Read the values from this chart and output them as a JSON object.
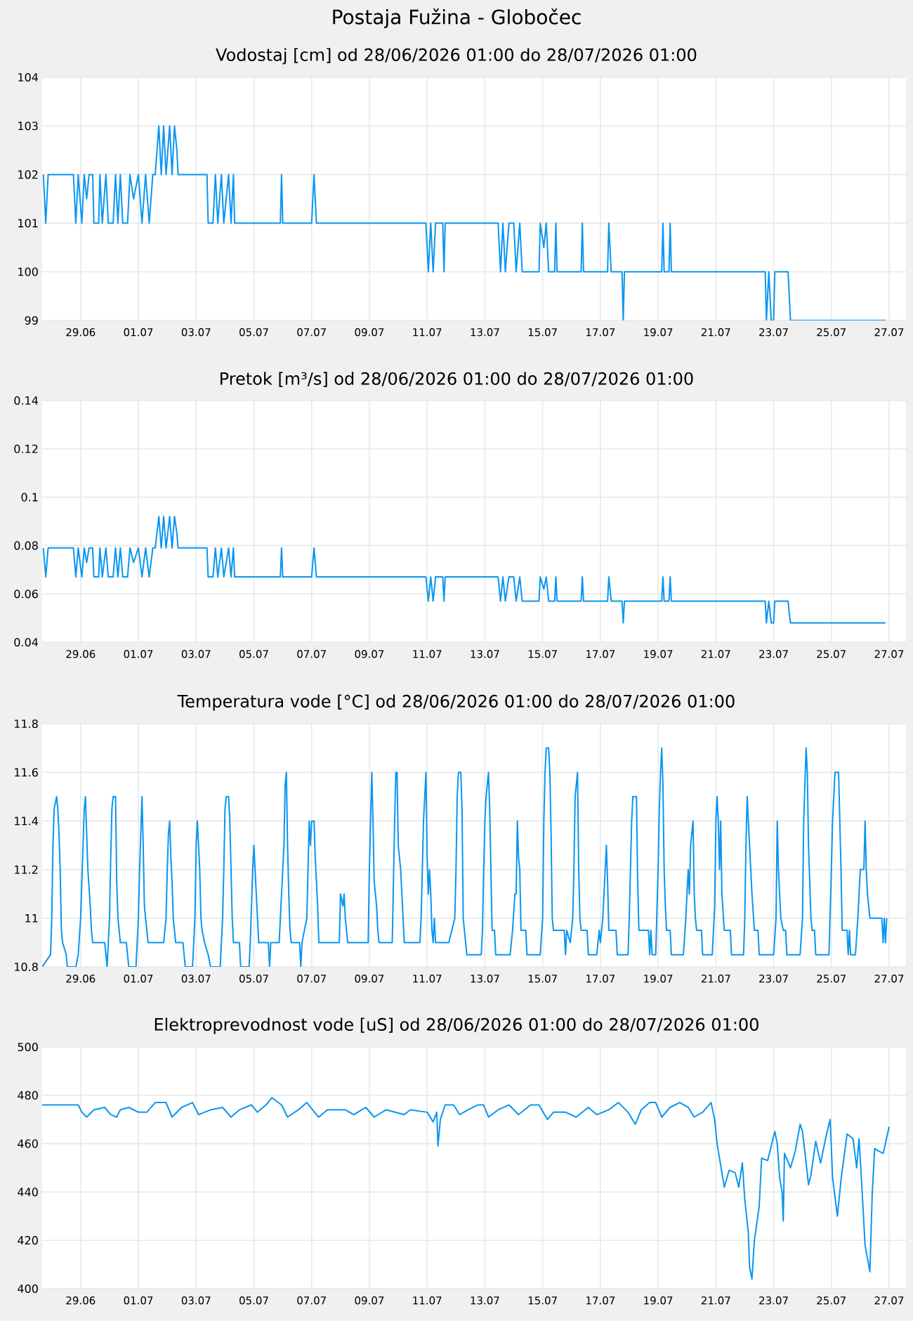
{
  "chart_data": [
    {
      "type": "line",
      "title": "Postaja Fužina - Globočec",
      "subtitle": "Vodostaj [cm] od 28/06/2026 01:00 do 28/07/2026 01:00",
      "color": "#0a96f0",
      "grid": true,
      "xlim": [
        "2026-06-27T16:00",
        "2026-07-27T14:00"
      ],
      "xticks": [
        {
          "value": "2026-06-29",
          "label": "29.06"
        },
        {
          "value": "2026-07-01",
          "label": "01.07"
        },
        {
          "value": "2026-07-03",
          "label": "03.07"
        },
        {
          "value": "2026-07-05",
          "label": "05.07"
        },
        {
          "value": "2026-07-07",
          "label": "07.07"
        },
        {
          "value": "2026-07-09",
          "label": "09.07"
        },
        {
          "value": "2026-07-11",
          "label": "11.07"
        },
        {
          "value": "2026-07-13",
          "label": "13.07"
        },
        {
          "value": "2026-07-15",
          "label": "15.07"
        },
        {
          "value": "2026-07-17",
          "label": "17.07"
        },
        {
          "value": "2026-07-19",
          "label": "19.07"
        },
        {
          "value": "2026-07-21",
          "label": "21.07"
        },
        {
          "value": "2026-07-23",
          "label": "23.07"
        },
        {
          "value": "2026-07-25",
          "label": "25.07"
        },
        {
          "value": "2026-07-27",
          "label": "27.07"
        }
      ],
      "ylim": [
        99,
        104
      ],
      "yticks": [
        99,
        100,
        101,
        102,
        103,
        104
      ],
      "x": [
        "2026-06-27T17:00",
        "2026-06-27T19:00",
        "2026-06-27T21:00",
        "2026-06-28T18:00",
        "2026-06-28T20:00",
        "2026-06-28T22:00",
        "2026-06-29T01:00",
        "2026-06-29T03:00",
        "2026-06-29T05:00",
        "2026-06-29T07:00",
        "2026-06-29T10:00",
        "2026-06-29T11:00",
        "2026-06-29T15:00",
        "2026-06-29T16:00",
        "2026-06-29T18:00",
        "2026-06-29T21:00",
        "2026-06-29T23:00",
        "2026-06-30T03:00",
        "2026-06-30T05:00",
        "2026-06-30T07:00",
        "2026-06-30T09:00",
        "2026-06-30T11:00",
        "2026-06-30T15:00",
        "2026-06-30T17:00",
        "2026-06-30T20:00",
        "2026-07-01T00:00",
        "2026-07-01T03:00",
        "2026-07-01T06:00",
        "2026-07-01T09:00",
        "2026-07-01T12:00",
        "2026-07-01T14:00",
        "2026-07-01T17:00",
        "2026-07-01T19:00",
        "2026-07-01T21:00",
        "2026-07-01T23:00",
        "2026-07-02T02:00",
        "2026-07-02T04:00",
        "2026-07-02T06:00",
        "2026-07-02T08:00",
        "2026-07-02T09:00",
        "2026-07-03T09:00",
        "2026-07-03T10:00",
        "2026-07-03T14:00",
        "2026-07-03T16:00",
        "2026-07-03T18:00",
        "2026-07-03T21:00",
        "2026-07-03T23:00",
        "2026-07-04T03:00",
        "2026-07-04T05:00",
        "2026-07-04T07:00",
        "2026-07-04T08:00",
        "2026-07-05T22:00",
        "2026-07-05T23:00",
        "2026-07-06T00:00",
        "2026-07-07T00:00",
        "2026-07-07T02:00",
        "2026-07-07T04:00",
        "2026-07-10T23:00",
        "2026-07-11T01:00",
        "2026-07-11T03:00",
        "2026-07-11T05:00",
        "2026-07-11T07:00",
        "2026-07-11T13:00",
        "2026-07-11T14:00",
        "2026-07-11T15:00",
        "2026-07-13T11:00",
        "2026-07-13T13:00",
        "2026-07-13T15:00",
        "2026-07-13T17:00",
        "2026-07-13T20:00",
        "2026-07-14T00:00",
        "2026-07-14T02:00",
        "2026-07-14T05:00",
        "2026-07-14T07:00",
        "2026-07-14T21:00",
        "2026-07-14T22:00",
        "2026-07-15T01:00",
        "2026-07-15T03:00",
        "2026-07-15T05:00",
        "2026-07-15T10:00",
        "2026-07-15T11:00",
        "2026-07-15T12:00",
        "2026-07-16T08:00",
        "2026-07-16T09:00",
        "2026-07-16T10:00",
        "2026-07-17T06:00",
        "2026-07-17T07:00",
        "2026-07-17T09:00",
        "2026-07-17T18:00",
        "2026-07-17T19:00",
        "2026-07-17T20:00",
        "2026-07-19T03:00",
        "2026-07-19T04:00",
        "2026-07-19T05:00",
        "2026-07-19T09:00",
        "2026-07-19T10:00",
        "2026-07-19T11:00",
        "2026-07-22T17:00",
        "2026-07-22T18:00",
        "2026-07-22T20:00",
        "2026-07-22T22:00",
        "2026-07-23T00:00",
        "2026-07-23T01:00",
        "2026-07-23T12:00",
        "2026-07-23T13:00",
        "2026-07-23T14:00",
        "2026-07-26T21:00"
      ],
      "values": [
        102,
        101,
        102,
        102,
        101,
        102,
        101,
        102,
        101.5,
        102,
        102,
        101,
        101,
        102,
        101,
        102,
        101,
        101,
        102,
        101,
        102,
        101,
        101,
        102,
        101.5,
        102,
        101,
        102,
        101,
        102,
        102,
        103,
        102,
        103,
        102,
        103,
        102,
        103,
        102.5,
        102,
        102,
        101,
        101,
        102,
        101,
        102,
        101,
        102,
        101,
        102,
        101,
        101,
        102,
        101,
        101,
        102,
        101,
        101,
        100,
        101,
        100,
        101,
        101,
        100,
        101,
        101,
        100,
        101,
        100,
        101,
        101,
        100,
        101,
        100,
        100,
        101,
        100.5,
        101,
        100,
        100,
        101,
        100,
        100,
        101,
        100,
        100,
        101,
        100,
        100,
        99,
        100,
        100,
        101,
        100,
        100,
        101,
        100,
        100,
        99,
        100,
        99,
        99,
        100,
        100,
        99.5,
        99,
        99
      ]
    },
    {
      "type": "line",
      "title": "Pretok [m³/s] od 28/06/2026 01:00 do 28/07/2026 01:00",
      "color": "#0a96f0",
      "grid": true,
      "xlim": [
        "2026-06-27T16:00",
        "2026-07-27T14:00"
      ],
      "xticks": [
        {
          "value": "2026-06-29",
          "label": "29.06"
        },
        {
          "value": "2026-07-01",
          "label": "01.07"
        },
        {
          "value": "2026-07-03",
          "label": "03.07"
        },
        {
          "value": "2026-07-05",
          "label": "05.07"
        },
        {
          "value": "2026-07-07",
          "label": "07.07"
        },
        {
          "value": "2026-07-09",
          "label": "09.07"
        },
        {
          "value": "2026-07-11",
          "label": "11.07"
        },
        {
          "value": "2026-07-13",
          "label": "13.07"
        },
        {
          "value": "2026-07-15",
          "label": "15.07"
        },
        {
          "value": "2026-07-17",
          "label": "17.07"
        },
        {
          "value": "2026-07-19",
          "label": "19.07"
        },
        {
          "value": "2026-07-21",
          "label": "21.07"
        },
        {
          "value": "2026-07-23",
          "label": "23.07"
        },
        {
          "value": "2026-07-25",
          "label": "25.07"
        },
        {
          "value": "2026-07-27",
          "label": "27.07"
        }
      ],
      "ylim": [
        0.04,
        0.14
      ],
      "yticks": [
        0.04,
        0.06,
        0.08,
        0.1,
        0.12,
        0.14
      ],
      "x": [
        "2026-06-27T17:00",
        "2026-06-27T19:00",
        "2026-06-27T21:00",
        "2026-06-28T18:00",
        "2026-06-28T20:00",
        "2026-06-28T22:00",
        "2026-06-29T01:00",
        "2026-06-29T03:00",
        "2026-06-29T05:00",
        "2026-06-29T07:00",
        "2026-06-29T10:00",
        "2026-06-29T11:00",
        "2026-06-29T15:00",
        "2026-06-29T16:00",
        "2026-06-29T18:00",
        "2026-06-29T21:00",
        "2026-06-29T23:00",
        "2026-06-30T03:00",
        "2026-06-30T05:00",
        "2026-06-30T07:00",
        "2026-06-30T09:00",
        "2026-06-30T11:00",
        "2026-06-30T15:00",
        "2026-06-30T17:00",
        "2026-06-30T20:00",
        "2026-07-01T00:00",
        "2026-07-01T03:00",
        "2026-07-01T06:00",
        "2026-07-01T09:00",
        "2026-07-01T12:00",
        "2026-07-01T14:00",
        "2026-07-01T17:00",
        "2026-07-01T19:00",
        "2026-07-01T21:00",
        "2026-07-01T23:00",
        "2026-07-02T02:00",
        "2026-07-02T04:00",
        "2026-07-02T06:00",
        "2026-07-02T08:00",
        "2026-07-02T09:00",
        "2026-07-03T09:00",
        "2026-07-03T10:00",
        "2026-07-03T14:00",
        "2026-07-03T16:00",
        "2026-07-03T18:00",
        "2026-07-03T21:00",
        "2026-07-03T23:00",
        "2026-07-04T03:00",
        "2026-07-04T05:00",
        "2026-07-04T07:00",
        "2026-07-04T08:00",
        "2026-07-05T22:00",
        "2026-07-05T23:00",
        "2026-07-06T00:00",
        "2026-07-07T00:00",
        "2026-07-07T02:00",
        "2026-07-07T04:00",
        "2026-07-10T23:00",
        "2026-07-11T01:00",
        "2026-07-11T03:00",
        "2026-07-11T05:00",
        "2026-07-11T07:00",
        "2026-07-11T13:00",
        "2026-07-11T14:00",
        "2026-07-11T15:00",
        "2026-07-13T11:00",
        "2026-07-13T13:00",
        "2026-07-13T15:00",
        "2026-07-13T17:00",
        "2026-07-13T20:00",
        "2026-07-14T00:00",
        "2026-07-14T02:00",
        "2026-07-14T05:00",
        "2026-07-14T07:00",
        "2026-07-14T21:00",
        "2026-07-14T22:00",
        "2026-07-15T01:00",
        "2026-07-15T03:00",
        "2026-07-15T05:00",
        "2026-07-15T10:00",
        "2026-07-15T11:00",
        "2026-07-15T12:00",
        "2026-07-16T08:00",
        "2026-07-16T09:00",
        "2026-07-16T10:00",
        "2026-07-17T06:00",
        "2026-07-17T07:00",
        "2026-07-17T09:00",
        "2026-07-17T18:00",
        "2026-07-17T19:00",
        "2026-07-17T20:00",
        "2026-07-19T03:00",
        "2026-07-19T04:00",
        "2026-07-19T05:00",
        "2026-07-19T09:00",
        "2026-07-19T10:00",
        "2026-07-19T11:00",
        "2026-07-22T17:00",
        "2026-07-22T18:00",
        "2026-07-22T20:00",
        "2026-07-22T22:00",
        "2026-07-23T00:00",
        "2026-07-23T01:00",
        "2026-07-23T12:00",
        "2026-07-23T13:00",
        "2026-07-23T14:00",
        "2026-07-26T21:00"
      ],
      "values": [
        0.079,
        0.067,
        0.079,
        0.079,
        0.067,
        0.079,
        0.067,
        0.079,
        0.073,
        0.079,
        0.079,
        0.067,
        0.067,
        0.079,
        0.067,
        0.079,
        0.067,
        0.067,
        0.079,
        0.067,
        0.079,
        0.067,
        0.067,
        0.079,
        0.073,
        0.079,
        0.067,
        0.079,
        0.067,
        0.079,
        0.079,
        0.092,
        0.079,
        0.092,
        0.079,
        0.092,
        0.079,
        0.092,
        0.085,
        0.079,
        0.079,
        0.067,
        0.067,
        0.079,
        0.067,
        0.079,
        0.067,
        0.079,
        0.067,
        0.079,
        0.067,
        0.067,
        0.079,
        0.067,
        0.067,
        0.079,
        0.067,
        0.067,
        0.057,
        0.067,
        0.057,
        0.067,
        0.067,
        0.057,
        0.067,
        0.067,
        0.057,
        0.067,
        0.057,
        0.067,
        0.067,
        0.057,
        0.067,
        0.057,
        0.057,
        0.067,
        0.062,
        0.067,
        0.057,
        0.057,
        0.067,
        0.057,
        0.057,
        0.067,
        0.057,
        0.057,
        0.067,
        0.057,
        0.057,
        0.048,
        0.057,
        0.057,
        0.067,
        0.057,
        0.057,
        0.067,
        0.057,
        0.057,
        0.048,
        0.057,
        0.048,
        0.048,
        0.057,
        0.057,
        0.052,
        0.048,
        0.048
      ]
    },
    {
      "type": "line",
      "title": "Temperatura vode [°C] od 28/06/2026 01:00 do 28/07/2026 01:00",
      "color": "#0a96f0",
      "grid": true,
      "xlim": [
        "2026-06-27T16:00",
        "2026-07-27T14:00"
      ],
      "xticks": [
        {
          "value": "2026-06-29",
          "label": "29.06"
        },
        {
          "value": "2026-07-01",
          "label": "01.07"
        },
        {
          "value": "2026-07-03",
          "label": "03.07"
        },
        {
          "value": "2026-07-05",
          "label": "05.07"
        },
        {
          "value": "2026-07-07",
          "label": "07.07"
        },
        {
          "value": "2026-07-09",
          "label": "09.07"
        },
        {
          "value": "2026-07-11",
          "label": "11.07"
        },
        {
          "value": "2026-07-13",
          "label": "13.07"
        },
        {
          "value": "2026-07-15",
          "label": "15.07"
        },
        {
          "value": "2026-07-17",
          "label": "17.07"
        },
        {
          "value": "2026-07-19",
          "label": "19.07"
        },
        {
          "value": "2026-07-21",
          "label": "21.07"
        },
        {
          "value": "2026-07-23",
          "label": "23.07"
        },
        {
          "value": "2026-07-25",
          "label": "25.07"
        },
        {
          "value": "2026-07-27",
          "label": "27.07"
        }
      ],
      "ylim": [
        10.8,
        11.8
      ],
      "yticks": [
        10.8,
        11,
        11.2,
        11.4,
        11.6,
        11.8
      ],
      "x": [
        "2026-06-27T16:00",
        "2026-06-27T23:00",
        "2026-06-28T00:00",
        "2026-06-28T01:00",
        "2026-06-28T02:00",
        "2026-06-28T04:00",
        "2026-06-28T05:00",
        "2026-06-28T06:00",
        "2026-06-28T07:00",
        "2026-06-28T08:00",
        "2026-06-28T09:00",
        "2026-06-28T12:00",
        "2026-06-28T13:00",
        "2026-06-28T20:00",
        "2026-06-28T22:00",
        "2026-06-29T00:00",
        "2026-06-29T01:00",
        "2026-06-29T02:00",
        "2026-06-29T03:00",
        "2026-06-29T04:00",
        "2026-06-29T05:00",
        "2026-06-29T06:00",
        "2026-06-29T08:00",
        "2026-06-29T09:00",
        "2026-06-29T10:00",
        "2026-06-29T20:00",
        "2026-06-29T21:00",
        "2026-06-29T22:00",
        "2026-06-30T00:00",
        "2026-06-30T01:00",
        "2026-06-30T02:00",
        "2026-06-30T03:00",
        "2026-06-30T05:00",
        "2026-06-30T06:00",
        "2026-06-30T07:00",
        "2026-06-30T08:00",
        "2026-06-30T09:00",
        "2026-06-30T14:00",
        "2026-06-30T15:00",
        "2026-06-30T16:00",
        "2026-06-30T22:00",
        "2026-06-30T23:00",
        "2026-07-01T00:00",
        "2026-07-01T01:00",
        "2026-07-01T02:00",
        "2026-07-01T03:00",
        "2026-07-01T04:00",
        "2026-07-01T05:00",
        "2026-07-01T06:00",
        "2026-07-01T07:00",
        "2026-07-01T08:00",
        "2026-07-01T21:00",
        "2026-07-01T23:00",
        "2026-07-02T00:00",
        "2026-07-02T01:00",
        "2026-07-02T02:00",
        "2026-07-02T03:00",
        "2026-07-02T04:00",
        "2026-07-02T05:00",
        "2026-07-02T07:00",
        "2026-07-02T13:00",
        "2026-07-02T14:00",
        "2026-07-02T15:00",
        "2026-07-02T21:00",
        "2026-07-02T23:00",
        "2026-07-03T00:00",
        "2026-07-03T01:00",
        "2026-07-03T02:00",
        "2026-07-03T03:00",
        "2026-07-03T04:00",
        "2026-07-03T05:00",
        "2026-07-03T07:00",
        "2026-07-03T10:00",
        "2026-07-03T12:00",
        "2026-07-03T20:00",
        "2026-07-03T22:00",
        "2026-07-03T23:00",
        "2026-07-04T00:00",
        "2026-07-04T01:00",
        "2026-07-04T03:00",
        "2026-07-04T04:00",
        "2026-07-04T05:00",
        "2026-07-04T06:00",
        "2026-07-04T07:00",
        "2026-07-04T12:00",
        "2026-07-04T13:00",
        "2026-07-04T20:00",
        "2026-07-04T21:00",
        "2026-07-04T22:00",
        "2026-07-04T23:00",
        "2026-07-05T00:00",
        "2026-07-05T01:00",
        "2026-07-05T02:00",
        "2026-07-05T03:00",
        "2026-07-05T04:00",
        "2026-07-05T12:00",
        "2026-07-05T13:00",
        "2026-07-05T14:00",
        "2026-07-05T21:00",
        "2026-07-05T23:00",
        "2026-07-06T00:00",
        "2026-07-06T01:00",
        "2026-07-06T02:00",
        "2026-07-06T03:00",
        "2026-07-06T04:00",
        "2026-07-06T05:00",
        "2026-07-06T06:00",
        "2026-07-06T07:00",
        "2026-07-06T14:00",
        "2026-07-06T15:00",
        "2026-07-06T16:00",
        "2026-07-06T20:00",
        "2026-07-06T21:00",
        "2026-07-06T22:00",
        "2026-07-06T23:00",
        "2026-07-07T00:00",
        "2026-07-07T02:00",
        "2026-07-07T03:00",
        "2026-07-07T04:00",
        "2026-07-07T05:00",
        "2026-07-07T06:00",
        "2026-07-07T23:00",
        "2026-07-08T00:00",
        "2026-07-08T02:00",
        "2026-07-08T03:00",
        "2026-07-08T04:00",
        "2026-07-08T06:00",
        "2026-07-08T23:00",
        "2026-07-09T00:00",
        "2026-07-09T01:00",
        "2026-07-09T02:00",
        "2026-07-09T03:00",
        "2026-07-09T04:00",
        "2026-07-09T06:00",
        "2026-07-09T07:00",
        "2026-07-09T08:00",
        "2026-07-09T19:00",
        "2026-07-09T20:00",
        "2026-07-09T21:00",
        "2026-07-09T22:00",
        "2026-07-09T23:00",
        "2026-07-10T00:00",
        "2026-07-10T02:00",
        "2026-07-10T03:00",
        "2026-07-10T04:00",
        "2026-07-10T05:00",
        "2026-07-10T18:00",
        "2026-07-10T19:00",
        "2026-07-10T21:00",
        "2026-07-10T22:00",
        "2026-07-10T23:00",
        "2026-07-11T00:00",
        "2026-07-11T01:00",
        "2026-07-11T02:00",
        "2026-07-11T03:00",
        "2026-07-11T04:00",
        "2026-07-11T05:00",
        "2026-07-11T06:00",
        "2026-07-11T07:00",
        "2026-07-11T18:00",
        "2026-07-11T23:00",
        "2026-07-12T00:00",
        "2026-07-12T01:00",
        "2026-07-12T02:00",
        "2026-07-12T04:00",
        "2026-07-12T05:00",
        "2026-07-12T06:00",
        "2026-07-12T07:00",
        "2026-07-12T08:00",
        "2026-07-12T09:00",
        "2026-07-12T21:00",
        "2026-07-12T22:00",
        "2026-07-12T23:00",
        "2026-07-13T00:00",
        "2026-07-13T01:00",
        "2026-07-13T03:00",
        "2026-07-13T04:00",
        "2026-07-13T05:00",
        "2026-07-13T06:00",
        "2026-07-13T08:00",
        "2026-07-13T09:00",
        "2026-07-13T21:00",
        "2026-07-13T23:00",
        "2026-07-14T01:00",
        "2026-07-14T02:00",
        "2026-07-14T03:00",
        "2026-07-14T04:00",
        "2026-07-14T05:00",
        "2026-07-14T06:00",
        "2026-07-14T10:00",
        "2026-07-14T11:00",
        "2026-07-14T22:00",
        "2026-07-15T00:00",
        "2026-07-15T01:00",
        "2026-07-15T02:00",
        "2026-07-15T03:00",
        "2026-07-15T05:00",
        "2026-07-15T06:00",
        "2026-07-15T07:00",
        "2026-07-15T08:00",
        "2026-07-15T09:00",
        "2026-07-15T18:00",
        "2026-07-15T19:00",
        "2026-07-15T20:00",
        "2026-07-15T23:00",
        "2026-07-16T01:00",
        "2026-07-16T02:00",
        "2026-07-16T03:00",
        "2026-07-16T04:00",
        "2026-07-16T05:00",
        "2026-07-16T06:00",
        "2026-07-16T07:00",
        "2026-07-16T08:00",
        "2026-07-16T13:00",
        "2026-07-16T14:00",
        "2026-07-16T21:00",
        "2026-07-16T23:00",
        "2026-07-17T00:00",
        "2026-07-17T02:00",
        "2026-07-17T04:00",
        "2026-07-17T05:00",
        "2026-07-17T06:00",
        "2026-07-17T07:00",
        "2026-07-17T13:00",
        "2026-07-17T14:00",
        "2026-07-17T23:00",
        "2026-07-18T00:00",
        "2026-07-18T01:00",
        "2026-07-18T02:00",
        "2026-07-18T03:00",
        "2026-07-18T06:00",
        "2026-07-18T07:00",
        "2026-07-18T08:00",
        "2026-07-18T16:00",
        "2026-07-18T17:00",
        "2026-07-18T18:00",
        "2026-07-18T19:00",
        "2026-07-18T22:00",
        "2026-07-19T00:00",
        "2026-07-19T01:00",
        "2026-07-19T02:00",
        "2026-07-19T03:00",
        "2026-07-19T04:00",
        "2026-07-19T05:00",
        "2026-07-19T06:00",
        "2026-07-19T07:00",
        "2026-07-19T10:00",
        "2026-07-19T11:00",
        "2026-07-19T21:00",
        "2026-07-19T23:00",
        "2026-07-20T01:00",
        "2026-07-20T02:00",
        "2026-07-20T03:00",
        "2026-07-20T05:00",
        "2026-07-20T06:00",
        "2026-07-20T07:00",
        "2026-07-20T08:00",
        "2026-07-20T12:00",
        "2026-07-20T13:00",
        "2026-07-20T21:00",
        "2026-07-20T23:00",
        "2026-07-21T00:00",
        "2026-07-21T01:00",
        "2026-07-21T02:00",
        "2026-07-21T03:00",
        "2026-07-21T04:00",
        "2026-07-21T05:00",
        "2026-07-21T07:00",
        "2026-07-21T12:00",
        "2026-07-21T13:00",
        "2026-07-21T23:00",
        "2026-07-22T00:00",
        "2026-07-22T01:00",
        "2026-07-22T02:00",
        "2026-07-22T03:00",
        "2026-07-22T04:00",
        "2026-07-22T06:00",
        "2026-07-22T08:00",
        "2026-07-22T11:00",
        "2026-07-22T12:00",
        "2026-07-23T00:00",
        "2026-07-23T02:00",
        "2026-07-23T03:00",
        "2026-07-23T04:00",
        "2026-07-23T05:00",
        "2026-07-23T06:00",
        "2026-07-23T08:00",
        "2026-07-23T10:00",
        "2026-07-23T11:00",
        "2026-07-23T22:00",
        "2026-07-24T00:00",
        "2026-07-24T01:00",
        "2026-07-24T02:00",
        "2026-07-24T03:00",
        "2026-07-24T04:00",
        "2026-07-24T05:00",
        "2026-07-24T07:00",
        "2026-07-24T08:00",
        "2026-07-24T10:00",
        "2026-07-24T11:00",
        "2026-07-24T22:00",
        "2026-07-25T00:00",
        "2026-07-25T01:00",
        "2026-07-25T03:00",
        "2026-07-25T06:00",
        "2026-07-25T07:00",
        "2026-07-25T08:00",
        "2026-07-25T09:00",
        "2026-07-25T13:00",
        "2026-07-25T14:00",
        "2026-07-25T15:00",
        "2026-07-25T16:00",
        "2026-07-25T20:00",
        "2026-07-25T22:00",
        "2026-07-26T00:00",
        "2026-07-26T03:00",
        "2026-07-26T04:00",
        "2026-07-26T05:00",
        "2026-07-26T06:00",
        "2026-07-26T08:00",
        "2026-07-26T18:00",
        "2026-07-26T19:00",
        "2026-07-26T20:00",
        "2026-07-26T21:00",
        "2026-07-26T22:00"
      ],
      "values": [
        10.8,
        10.85,
        11.0,
        11.3,
        11.45,
        11.5,
        11.45,
        11.35,
        11.2,
        10.95,
        10.9,
        10.85,
        10.8,
        10.8,
        10.85,
        11.0,
        11.15,
        11.3,
        11.45,
        11.5,
        11.35,
        11.2,
        11.05,
        10.95,
        10.9,
        10.9,
        10.85,
        10.8,
        11.0,
        11.25,
        11.45,
        11.5,
        11.5,
        11.15,
        11.0,
        10.95,
        10.9,
        10.9,
        10.85,
        10.8,
        10.8,
        10.9,
        11.0,
        11.2,
        11.35,
        11.5,
        11.3,
        11.05,
        11.0,
        10.95,
        10.9,
        10.9,
        11.0,
        11.2,
        11.35,
        11.4,
        11.25,
        11.15,
        11.0,
        10.9,
        10.9,
        10.85,
        10.8,
        10.8,
        11.0,
        11.3,
        11.4,
        11.3,
        11.2,
        11.0,
        10.95,
        10.9,
        10.85,
        10.8,
        10.8,
        11.0,
        11.2,
        11.45,
        11.5,
        11.5,
        11.4,
        11.2,
        11.0,
        10.9,
        10.9,
        10.8,
        10.8,
        10.9,
        11.05,
        11.2,
        11.3,
        11.2,
        11.1,
        11.0,
        10.9,
        10.9,
        10.8,
        10.9,
        10.9,
        11.1,
        11.2,
        11.3,
        11.55,
        11.6,
        11.3,
        11.1,
        10.95,
        10.9,
        10.9,
        10.8,
        10.9,
        11.0,
        11.2,
        11.4,
        11.3,
        11.4,
        11.4,
        11.25,
        11.15,
        11.05,
        10.9,
        10.9,
        11.1,
        11.05,
        11.1,
        11.0,
        10.9,
        10.9,
        11.2,
        11.4,
        11.6,
        11.4,
        11.15,
        11.05,
        10.95,
        10.9,
        10.9,
        11.15,
        11.4,
        11.6,
        11.6,
        11.3,
        11.2,
        11.1,
        11.0,
        10.9,
        10.9,
        11.0,
        11.4,
        11.5,
        11.6,
        11.25,
        11.1,
        11.2,
        11.1,
        10.95,
        10.9,
        11.0,
        10.9,
        10.9,
        11.0,
        11.2,
        11.5,
        11.6,
        11.6,
        11.45,
        11.0,
        10.95,
        10.9,
        10.85,
        10.85,
        10.95,
        11.2,
        11.4,
        11.5,
        11.6,
        11.45,
        11.2,
        10.95,
        10.95,
        10.85,
        10.85,
        10.95,
        11.1,
        11.1,
        11.4,
        11.25,
        11.2,
        10.95,
        10.95,
        10.85,
        10.85,
        11.0,
        11.4,
        11.6,
        11.7,
        11.7,
        11.6,
        11.35,
        11.0,
        10.95,
        10.95,
        10.85,
        10.95,
        10.9,
        11.0,
        11.2,
        11.5,
        11.55,
        11.6,
        11.2,
        11.0,
        10.95,
        10.95,
        10.85,
        10.85,
        10.95,
        10.9,
        11.0,
        11.2,
        11.3,
        11.15,
        10.95,
        10.95,
        10.85,
        10.85,
        11.0,
        11.2,
        11.4,
        11.5,
        11.5,
        11.15,
        10.95,
        10.95,
        10.85,
        10.95,
        10.85,
        10.85,
        11.2,
        11.45,
        11.6,
        11.7,
        11.55,
        11.2,
        11.05,
        10.95,
        10.95,
        10.85,
        10.85,
        11.0,
        11.2,
        11.1,
        11.3,
        11.4,
        11.1,
        11.0,
        10.95,
        10.95,
        10.85,
        10.85,
        11.05,
        11.4,
        11.5,
        11.4,
        11.2,
        11.4,
        11.1,
        10.95,
        10.95,
        10.85,
        10.85,
        11.0,
        11.3,
        11.5,
        11.4,
        11.3,
        11.1,
        10.95,
        10.95,
        10.85,
        10.85,
        11.0,
        11.4,
        11.2,
        11.1,
        11.0,
        10.95,
        10.95,
        10.85,
        10.85,
        11.0,
        11.4,
        11.55,
        11.7,
        11.6,
        11.3,
        11.0,
        10.95,
        10.95,
        10.85,
        10.85,
        11.2,
        11.4,
        11.6,
        11.6,
        11.4,
        11.2,
        10.95,
        10.95,
        10.85,
        10.95,
        10.85,
        10.85,
        11.0,
        11.2,
        11.2,
        11.4,
        11.2,
        11.1,
        11.0,
        11.0,
        10.9,
        11.0,
        10.9,
        11.0
      ]
    },
    {
      "type": "line",
      "title": "Elektroprevodnost vode [uS] od 28/06/2026 01:00 do 28/07/2026 01:00",
      "color": "#0a96f0",
      "grid": true,
      "xlim": [
        "2026-06-27T16:00",
        "2026-07-27T14:00"
      ],
      "xticks": [
        {
          "value": "2026-06-29",
          "label": "29.06"
        },
        {
          "value": "2026-07-01",
          "label": "01.07"
        },
        {
          "value": "2026-07-03",
          "label": "03.07"
        },
        {
          "value": "2026-07-05",
          "label": "05.07"
        },
        {
          "value": "2026-07-07",
          "label": "07.07"
        },
        {
          "value": "2026-07-09",
          "label": "09.07"
        },
        {
          "value": "2026-07-11",
          "label": "11.07"
        },
        {
          "value": "2026-07-13",
          "label": "13.07"
        },
        {
          "value": "2026-07-15",
          "label": "15.07"
        },
        {
          "value": "2026-07-17",
          "label": "17.07"
        },
        {
          "value": "2026-07-19",
          "label": "19.07"
        },
        {
          "value": "2026-07-21",
          "label": "21.07"
        },
        {
          "value": "2026-07-23",
          "label": "23.07"
        },
        {
          "value": "2026-07-25",
          "label": "25.07"
        },
        {
          "value": "2026-07-27",
          "label": "27.07"
        }
      ],
      "ylim": [
        400,
        500
      ],
      "yticks": [
        400,
        420,
        440,
        460,
        480,
        500
      ],
      "x": [
        "2026-06-27T16:00",
        "2026-06-28T22:00",
        "2026-06-29T01:00",
        "2026-06-29T05:00",
        "2026-06-29T11:00",
        "2026-06-29T20:00",
        "2026-06-30T01:00",
        "2026-06-30T06:00",
        "2026-06-30T09:00",
        "2026-06-30T16:00",
        "2026-07-01T00:00",
        "2026-07-01T07:00",
        "2026-07-01T14:00",
        "2026-07-01T23:00",
        "2026-07-02T04:00",
        "2026-07-02T12:00",
        "2026-07-02T21:00",
        "2026-07-03T02:00",
        "2026-07-03T12:00",
        "2026-07-03T22:00",
        "2026-07-04T05:00",
        "2026-07-04T12:00",
        "2026-07-04T22:00",
        "2026-07-05T03:00",
        "2026-07-05T10:00",
        "2026-07-05T15:00",
        "2026-07-05T23:00",
        "2026-07-06T04:00",
        "2026-07-06T13:00",
        "2026-07-06T20:00",
        "2026-07-07T04:00",
        "2026-07-07T06:00",
        "2026-07-07T13:00",
        "2026-07-08T04:00",
        "2026-07-08T11:00",
        "2026-07-08T21:00",
        "2026-07-09T04:00",
        "2026-07-09T14:00",
        "2026-07-10T05:00",
        "2026-07-10T10:00",
        "2026-07-11T00:00",
        "2026-07-11T05:00",
        "2026-07-11T08:00",
        "2026-07-11T09:00",
        "2026-07-11T11:00",
        "2026-07-11T15:00",
        "2026-07-11T22:00",
        "2026-07-12T03:00",
        "2026-07-12T10:00",
        "2026-07-12T18:00",
        "2026-07-12T23:00",
        "2026-07-13T03:00",
        "2026-07-13T11:00",
        "2026-07-13T20:00",
        "2026-07-14T04:00",
        "2026-07-14T14:00",
        "2026-07-14T21:00",
        "2026-07-15T04:00",
        "2026-07-15T09:00",
        "2026-07-15T19:00",
        "2026-07-16T04:00",
        "2026-07-16T14:00",
        "2026-07-16T21:00",
        "2026-07-17T07:00",
        "2026-07-17T15:00",
        "2026-07-17T23:00",
        "2026-07-18T05:00",
        "2026-07-18T10:00",
        "2026-07-18T17:00",
        "2026-07-18T22:00",
        "2026-07-19T03:00",
        "2026-07-19T10:00",
        "2026-07-19T18:00",
        "2026-07-20T01:00",
        "2026-07-20T06:00",
        "2026-07-20T13:00",
        "2026-07-20T20:00",
        "2026-07-20T23:00",
        "2026-07-21T01:00",
        "2026-07-21T05:00",
        "2026-07-21T07:00",
        "2026-07-21T11:00",
        "2026-07-21T16:00",
        "2026-07-21T19:00",
        "2026-07-21T22:00",
        "2026-07-22T00:00",
        "2026-07-22T03:00",
        "2026-07-22T04:00",
        "2026-07-22T06:00",
        "2026-07-22T08:00",
        "2026-07-22T12:00",
        "2026-07-22T14:00",
        "2026-07-22T19:00",
        "2026-07-22T21:00",
        "2026-07-23T01:00",
        "2026-07-23T03:00",
        "2026-07-23T05:00",
        "2026-07-23T07:00",
        "2026-07-23T08:00",
        "2026-07-23T09:00",
        "2026-07-23T14:00",
        "2026-07-23T18:00",
        "2026-07-23T22:00",
        "2026-07-24T00:00",
        "2026-07-24T03:00",
        "2026-07-24T05:00",
        "2026-07-24T07:00",
        "2026-07-24T11:00",
        "2026-07-24T15:00",
        "2026-07-24T20:00",
        "2026-07-24T23:00",
        "2026-07-25T01:00",
        "2026-07-25T05:00",
        "2026-07-25T08:00",
        "2026-07-25T13:00",
        "2026-07-25T18:00",
        "2026-07-25T21:00",
        "2026-07-25T23:00",
        "2026-07-26T01:00",
        "2026-07-26T04:00",
        "2026-07-26T08:00",
        "2026-07-26T10:00",
        "2026-07-26T12:00",
        "2026-07-26T15:00",
        "2026-07-26T19:00",
        "2026-07-26T20:00",
        "2026-07-27T00:00"
      ],
      "values": [
        476,
        476,
        473,
        471,
        474,
        475,
        472,
        471,
        474,
        475,
        473,
        473,
        477,
        477,
        471,
        475,
        477,
        472,
        474,
        475,
        471,
        474,
        476,
        473,
        476,
        479,
        476,
        471,
        474,
        477,
        472,
        471,
        474,
        474,
        472,
        475,
        471,
        474,
        472,
        474,
        473,
        469,
        473,
        459,
        470,
        476,
        476,
        472,
        474,
        476,
        476,
        471,
        474,
        476,
        472,
        476,
        476,
        470,
        473,
        473,
        471,
        475,
        472,
        474,
        477,
        473,
        468,
        474,
        477,
        477,
        471,
        475,
        477,
        475,
        471,
        473,
        477,
        470,
        460,
        448,
        442,
        449,
        448,
        442,
        452,
        437,
        423,
        409,
        404,
        420,
        434,
        454,
        453,
        457,
        465,
        460,
        446,
        440,
        428,
        456,
        450,
        457,
        468,
        465,
        452,
        443,
        447,
        461,
        452,
        464,
        470,
        446,
        430,
        445,
        464,
        462,
        450,
        462,
        445,
        418,
        407,
        440,
        458,
        457,
        456,
        458,
        467
      ]
    }
  ]
}
